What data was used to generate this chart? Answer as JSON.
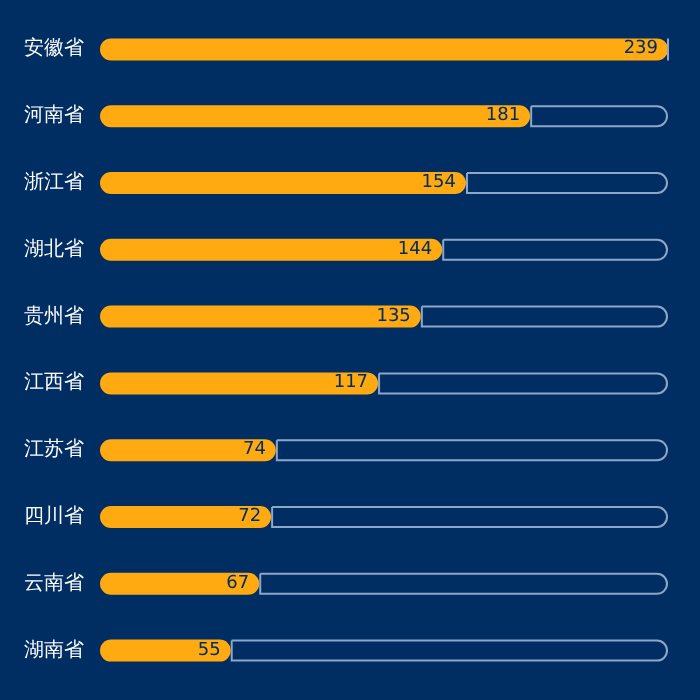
{
  "chart_data": {
    "type": "bar",
    "orientation": "horizontal",
    "stacked": true,
    "categories": [
      "安徽省",
      "河南省",
      "浙江省",
      "湖北省",
      "贵州省",
      "江西省",
      "江苏省",
      "四川省",
      "云南省",
      "湖南省"
    ],
    "series": [
      {
        "color": "#ffaa10",
        "values": [
          239,
          181,
          154,
          144,
          135,
          117,
          74,
          72,
          67,
          55
        ],
        "value_labels": [
          "239",
          "181",
          "154",
          "144",
          "135",
          "117",
          "74",
          "72",
          "67",
          "55"
        ]
      },
      {
        "color": "#8ea6c8",
        "line_style": "solid",
        "values": [
          0,
          58,
          85,
          95,
          104,
          122,
          165,
          167,
          172,
          184
        ]
      }
    ]
  }
}
